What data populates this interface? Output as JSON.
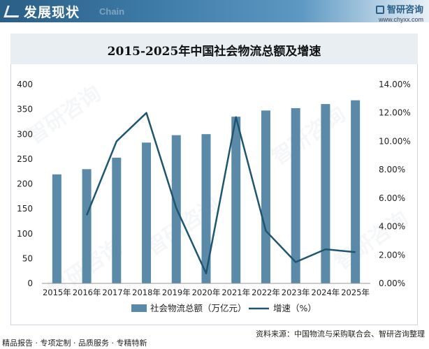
{
  "header": {
    "title": "发展现状",
    "subtitle": "Chain",
    "brand_name": "智研咨询",
    "brand_url": "www.chyxx.com"
  },
  "chart_data": {
    "type": "bar+line",
    "title": "2015-2025年中国社会物流总额及增速",
    "categories": [
      "2015年",
      "2016年",
      "2017年",
      "2018年",
      "2019年",
      "2020年",
      "2021年",
      "2022年",
      "2023年",
      "2024年",
      "2025年"
    ],
    "series": [
      {
        "name": "社会物流总额（万亿元）",
        "type": "bar",
        "axis": "left",
        "values": [
          219.2,
          229.7,
          252.8,
          283.1,
          298.0,
          300.1,
          335.2,
          347.6,
          352.4,
          360.6,
          368.2
        ]
      },
      {
        "name": "增速（%）",
        "type": "line",
        "axis": "right",
        "values": [
          null,
          4.8,
          10.0,
          12.0,
          5.3,
          0.7,
          11.7,
          3.7,
          1.5,
          2.4,
          2.2
        ]
      }
    ],
    "y_left": {
      "min": 0,
      "max": 400,
      "ticks": [
        "0",
        "50",
        "100",
        "150",
        "200",
        "250",
        "300",
        "350",
        "400"
      ]
    },
    "y_right": {
      "min": 0,
      "max": 14,
      "ticks": [
        "0.00%",
        "2.00%",
        "4.00%",
        "6.00%",
        "8.00%",
        "10.00%",
        "12.00%",
        "14.00%"
      ]
    },
    "grid": false,
    "legend_position": "bottom-center"
  },
  "colors": {
    "bar": "#5a8aa8",
    "line": "#1f5570",
    "header": "#2a5f86"
  },
  "footer": {
    "services": "精品报告 · 专项定制 · 品质服务 · 专精特新",
    "source": "资料来源：中国物流与采购联合会、智研咨询整理"
  },
  "watermark": "智研咨询"
}
